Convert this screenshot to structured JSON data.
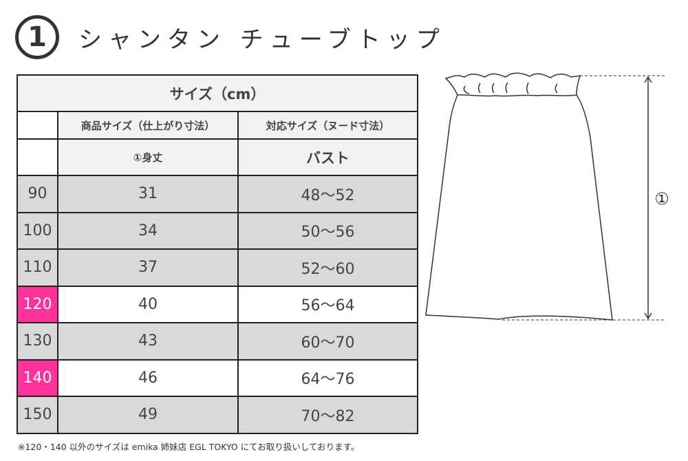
{
  "title": {
    "number": "1",
    "text": "シャンタン チューブトップ"
  },
  "table": {
    "caption": "サイズ（cm）",
    "header1": [
      "商品サイズ（仕上がり寸法）",
      "対応サイズ（ヌード寸法）"
    ],
    "header2": [
      "①身丈",
      "バスト"
    ],
    "rows": [
      {
        "size": "90",
        "length": "31",
        "bust": "48～52",
        "highlight": false
      },
      {
        "size": "100",
        "length": "34",
        "bust": "50～56",
        "highlight": false
      },
      {
        "size": "110",
        "length": "37",
        "bust": "52～60",
        "highlight": false
      },
      {
        "size": "120",
        "length": "40",
        "bust": "56～64",
        "highlight": true
      },
      {
        "size": "130",
        "length": "43",
        "bust": "60～70",
        "highlight": false
      },
      {
        "size": "140",
        "length": "46",
        "bust": "64～76",
        "highlight": true
      },
      {
        "size": "150",
        "length": "49",
        "bust": "70～82",
        "highlight": false
      }
    ]
  },
  "diagram": {
    "label": "①"
  },
  "note": "※120・140 以外のサイズは emika 姉妹店 EGL TOKYO にてお取り扱いしております。",
  "colors": {
    "highlight": "#ff3399",
    "row_gray": "#d9d9d9",
    "header": "#f2f2f2"
  }
}
